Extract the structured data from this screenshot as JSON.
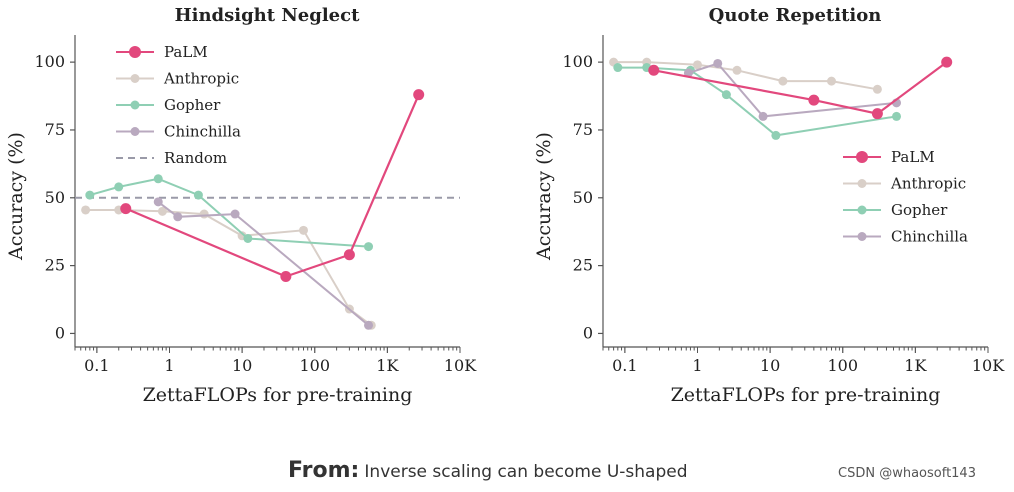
{
  "chart_data": [
    {
      "type": "line",
      "title": "Hindsight Neglect",
      "xlabel": "ZettaFLOPs for pre-training",
      "ylabel": "Accuracy (%)",
      "xscale": "log",
      "xlim": [
        0.05,
        10000
      ],
      "ylim": [
        -5,
        110
      ],
      "xticks": [
        {
          "v": 0.1,
          "label": "0.1"
        },
        {
          "v": 1,
          "label": "1"
        },
        {
          "v": 10,
          "label": "10"
        },
        {
          "v": 100,
          "label": "100"
        },
        {
          "v": 1000,
          "label": "1K"
        },
        {
          "v": 10000,
          "label": "10K"
        }
      ],
      "yticks": [
        {
          "v": 0,
          "label": "0"
        },
        {
          "v": 25,
          "label": "25"
        },
        {
          "v": 50,
          "label": "50"
        },
        {
          "v": 75,
          "label": "75"
        },
        {
          "v": 100,
          "label": "100"
        }
      ],
      "legend_position": "top-left",
      "series": [
        {
          "name": "Anthropic",
          "color": "#d9cfc8",
          "points": [
            [
              0.07,
              45.5
            ],
            [
              0.2,
              45.5
            ],
            [
              0.8,
              45
            ],
            [
              3,
              44
            ],
            [
              10,
              36
            ],
            [
              70,
              38
            ],
            [
              300,
              9
            ],
            [
              600,
              3
            ]
          ]
        },
        {
          "name": "Gopher",
          "color": "#8fcfb4",
          "points": [
            [
              0.08,
              51
            ],
            [
              0.2,
              54
            ],
            [
              0.7,
              57
            ],
            [
              2.5,
              51
            ],
            [
              12,
              35
            ],
            [
              550,
              32
            ]
          ]
        },
        {
          "name": "Chinchilla",
          "color": "#b9a9bf",
          "points": [
            [
              0.7,
              48.5
            ],
            [
              1.3,
              43
            ],
            [
              8,
              44
            ],
            [
              550,
              3
            ]
          ]
        },
        {
          "name": "PaLM",
          "color": "#e2487d",
          "points": [
            [
              0.25,
              46
            ],
            [
              40,
              21
            ],
            [
              300,
              29
            ],
            [
              2700,
              88
            ]
          ]
        }
      ],
      "reference_line": {
        "name": "Random",
        "value": 50,
        "style": "dashed",
        "color": "#9a9aa8"
      },
      "legend_order": [
        "PaLM",
        "Anthropic",
        "Gopher",
        "Chinchilla",
        "Random"
      ]
    },
    {
      "type": "line",
      "title": "Quote Repetition",
      "xlabel": "ZettaFLOPs for pre-training",
      "ylabel": "Accuracy (%)",
      "xscale": "log",
      "xlim": [
        0.05,
        10000
      ],
      "ylim": [
        -5,
        110
      ],
      "xticks": [
        {
          "v": 0.1,
          "label": "0.1"
        },
        {
          "v": 1,
          "label": "1"
        },
        {
          "v": 10,
          "label": "10"
        },
        {
          "v": 100,
          "label": "100"
        },
        {
          "v": 1000,
          "label": "1K"
        },
        {
          "v": 10000,
          "label": "10K"
        }
      ],
      "yticks": [
        {
          "v": 0,
          "label": "0"
        },
        {
          "v": 25,
          "label": "25"
        },
        {
          "v": 50,
          "label": "50"
        },
        {
          "v": 75,
          "label": "75"
        },
        {
          "v": 100,
          "label": "100"
        }
      ],
      "legend_position": "center-right",
      "series": [
        {
          "name": "Anthropic",
          "color": "#d9cfc8",
          "points": [
            [
              0.07,
              100
            ],
            [
              0.2,
              100
            ],
            [
              1,
              99
            ],
            [
              3.5,
              97
            ],
            [
              15,
              93
            ],
            [
              70,
              93
            ],
            [
              300,
              90
            ]
          ]
        },
        {
          "name": "Gopher",
          "color": "#8fcfb4",
          "points": [
            [
              0.08,
              98
            ],
            [
              0.2,
              98
            ],
            [
              0.8,
              97
            ],
            [
              2.5,
              88
            ],
            [
              12,
              73
            ],
            [
              550,
              80
            ]
          ]
        },
        {
          "name": "Chinchilla",
          "color": "#b9a9bf",
          "points": [
            [
              0.75,
              96
            ],
            [
              1.9,
              99.5
            ],
            [
              8,
              80
            ],
            [
              550,
              85
            ]
          ]
        },
        {
          "name": "PaLM",
          "color": "#e2487d",
          "points": [
            [
              0.25,
              97
            ],
            [
              40,
              86
            ],
            [
              300,
              81
            ],
            [
              2700,
              100
            ]
          ]
        }
      ],
      "legend_order": [
        "PaLM",
        "Anthropic",
        "Gopher",
        "Chinchilla"
      ]
    }
  ],
  "caption": {
    "from": "From:",
    "text": "Inverse scaling can become U-shaped"
  },
  "watermark": "CSDN @whaosoft143"
}
